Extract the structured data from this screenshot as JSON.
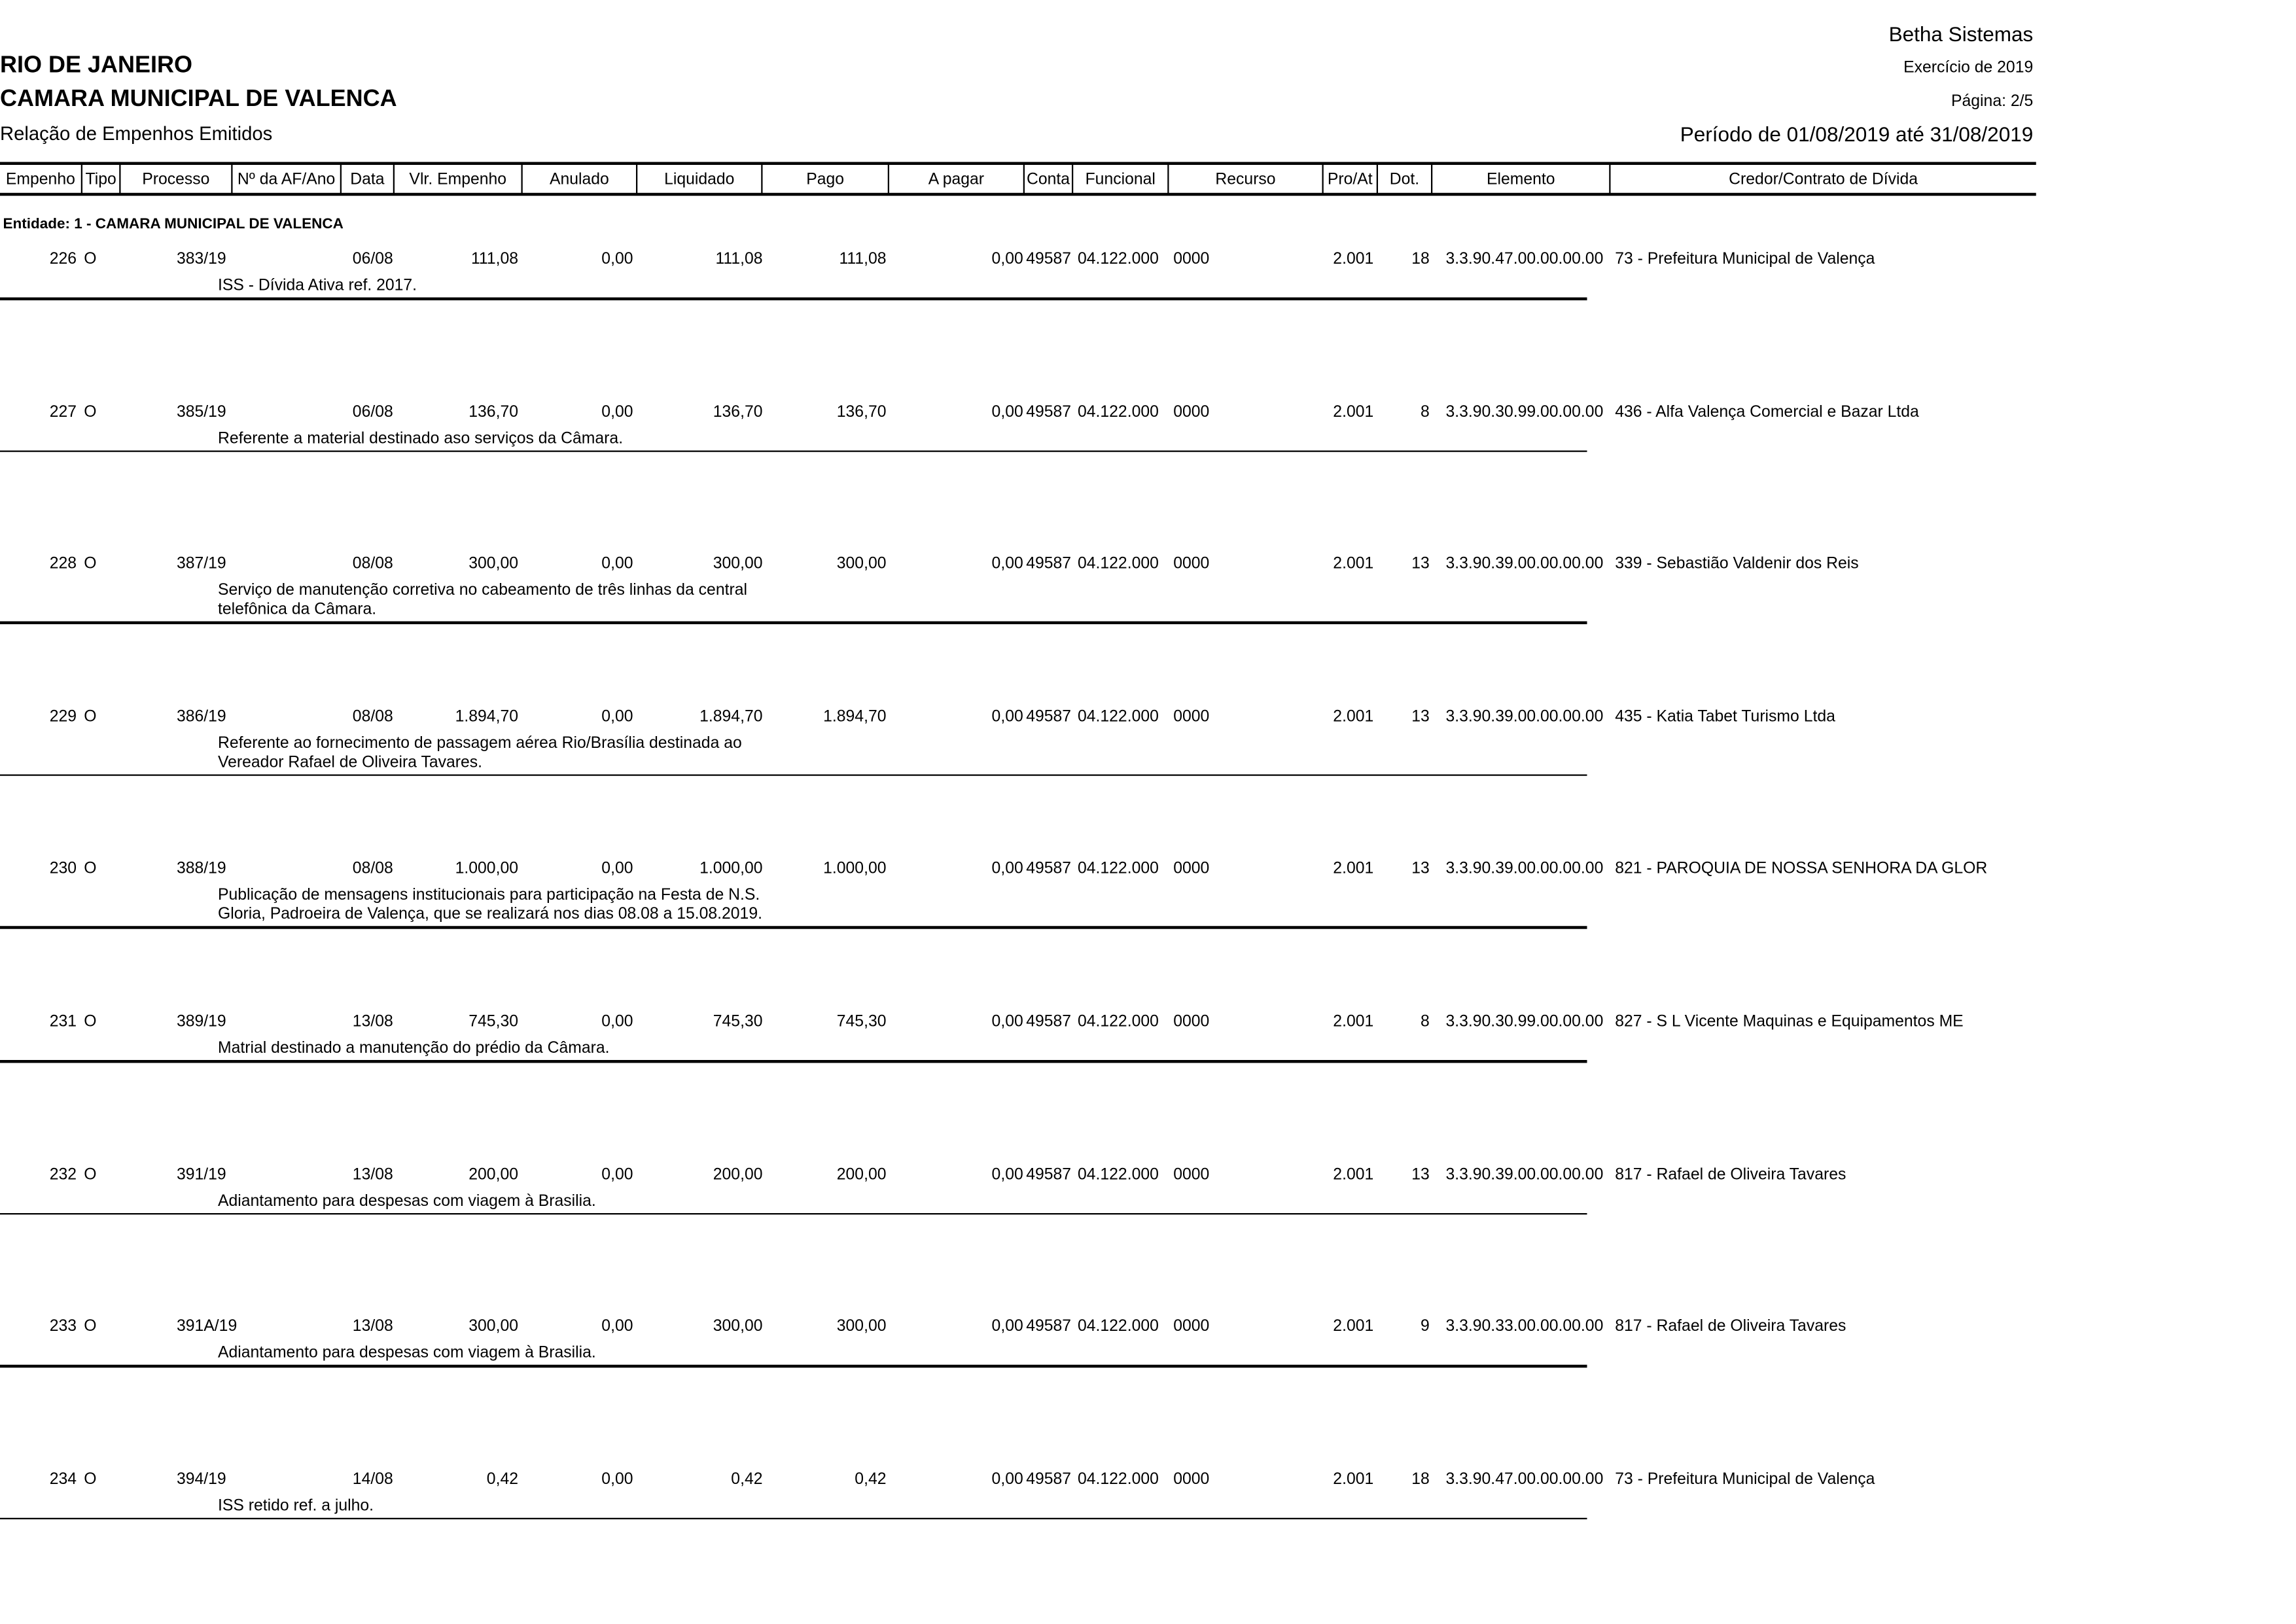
{
  "header": {
    "vendor": "Betha Sistemas",
    "state": "RIO DE JANEIRO",
    "entity_name": "CAMARA MUNICIPAL DE VALENCA",
    "report_title": "Relação de Empenhos Emitidos",
    "exercise": "Exercício de 2019",
    "page": "Página: 2/5",
    "period": "Período de 01/08/2019 até 31/08/2019"
  },
  "columns": [
    "Empenho",
    "Tipo",
    "Processo",
    "Nº da AF/Ano",
    "Data",
    "Vlr. Empenho",
    "Anulado",
    "Liquidado",
    "Pago",
    "A pagar",
    "Conta",
    "Funcional",
    "Recurso",
    "Pro/At",
    "Dot.",
    "Elemento",
    "Credor/Contrato de Dívida"
  ],
  "entity_label": "Entidade: 1 - CAMARA MUNICIPAL DE VALENCA",
  "rows": [
    {
      "empenho": "226",
      "tipo": "O",
      "processo": "383/19",
      "af": "",
      "data": "06/08",
      "vlr": "111,08",
      "anulado": "0,00",
      "liquidado": "111,08",
      "pago": "111,08",
      "apagar": "0,00",
      "conta": "49587",
      "funcional": "04.122.000",
      "recurso": "0000",
      "proat": "2.001",
      "dot": "18",
      "elemento": "3.3.90.47.00.00.00.00",
      "credor": "73 - Prefeitura Municipal de Valença",
      "desc": "ISS - Dívida Ativa ref. 2017."
    },
    {
      "empenho": "227",
      "tipo": "O",
      "processo": "385/19",
      "af": "",
      "data": "06/08",
      "vlr": "136,70",
      "anulado": "0,00",
      "liquidado": "136,70",
      "pago": "136,70",
      "apagar": "0,00",
      "conta": "49587",
      "funcional": "04.122.000",
      "recurso": "0000",
      "proat": "2.001",
      "dot": "8",
      "elemento": "3.3.90.30.99.00.00.00",
      "credor": "436 - Alfa Valença Comercial e Bazar Ltda",
      "desc": "Referente a material destinado aso serviços da Câmara."
    },
    {
      "empenho": "228",
      "tipo": "O",
      "processo": "387/19",
      "af": "",
      "data": "08/08",
      "vlr": "300,00",
      "anulado": "0,00",
      "liquidado": "300,00",
      "pago": "300,00",
      "apagar": "0,00",
      "conta": "49587",
      "funcional": "04.122.000",
      "recurso": "0000",
      "proat": "2.001",
      "dot": "13",
      "elemento": "3.3.90.39.00.00.00.00",
      "credor": "339 - Sebastião Valdenir dos Reis",
      "desc": "Serviço de manutenção corretiva no cabeamento de três linhas da central\ntelefônica da  Câmara."
    },
    {
      "empenho": "229",
      "tipo": "O",
      "processo": "386/19",
      "af": "",
      "data": "08/08",
      "vlr": "1.894,70",
      "anulado": "0,00",
      "liquidado": "1.894,70",
      "pago": "1.894,70",
      "apagar": "0,00",
      "conta": "49587",
      "funcional": "04.122.000",
      "recurso": "0000",
      "proat": "2.001",
      "dot": "13",
      "elemento": "3.3.90.39.00.00.00.00",
      "credor": "435 - Katia Tabet Turismo Ltda",
      "desc": "Referente ao fornecimento de passagem aérea Rio/Brasília destinada ao\nVereador Rafael de Oliveira Tavares."
    },
    {
      "empenho": "230",
      "tipo": "O",
      "processo": "388/19",
      "af": "",
      "data": "08/08",
      "vlr": "1.000,00",
      "anulado": "0,00",
      "liquidado": "1.000,00",
      "pago": "1.000,00",
      "apagar": "0,00",
      "conta": "49587",
      "funcional": "04.122.000",
      "recurso": "0000",
      "proat": "2.001",
      "dot": "13",
      "elemento": "3.3.90.39.00.00.00.00",
      "credor": "821 - PAROQUIA DE NOSSA SENHORA DA GLOR",
      "desc": "Publicação de mensagens institucionais para participação na Festa de N.S.\nGloria, Padroeira de Valença,  que se realizará nos dias 08.08 a 15.08.2019."
    },
    {
      "empenho": "231",
      "tipo": "O",
      "processo": "389/19",
      "af": "",
      "data": "13/08",
      "vlr": "745,30",
      "anulado": "0,00",
      "liquidado": "745,30",
      "pago": "745,30",
      "apagar": "0,00",
      "conta": "49587",
      "funcional": "04.122.000",
      "recurso": "0000",
      "proat": "2.001",
      "dot": "8",
      "elemento": "3.3.90.30.99.00.00.00",
      "credor": "827 - S L Vicente Maquinas e Equipamentos ME",
      "desc": "Matrial destinado a manutenção do prédio da Câmara."
    },
    {
      "empenho": "232",
      "tipo": "O",
      "processo": "391/19",
      "af": "",
      "data": "13/08",
      "vlr": "200,00",
      "anulado": "0,00",
      "liquidado": "200,00",
      "pago": "200,00",
      "apagar": "0,00",
      "conta": "49587",
      "funcional": "04.122.000",
      "recurso": "0000",
      "proat": "2.001",
      "dot": "13",
      "elemento": "3.3.90.39.00.00.00.00",
      "credor": "817 - Rafael de Oliveira Tavares",
      "desc": "Adiantamento para despesas com viagem à Brasilia."
    },
    {
      "empenho": "233",
      "tipo": "O",
      "processo": "391A/19",
      "af": "",
      "data": "13/08",
      "vlr": "300,00",
      "anulado": "0,00",
      "liquidado": "300,00",
      "pago": "300,00",
      "apagar": "0,00",
      "conta": "49587",
      "funcional": "04.122.000",
      "recurso": "0000",
      "proat": "2.001",
      "dot": "9",
      "elemento": "3.3.90.33.00.00.00.00",
      "credor": "817 - Rafael de Oliveira Tavares",
      "desc": "Adiantamento para despesas com viagem à Brasilia."
    },
    {
      "empenho": "234",
      "tipo": "O",
      "processo": "394/19",
      "af": "",
      "data": "14/08",
      "vlr": "0,42",
      "anulado": "0,00",
      "liquidado": "0,42",
      "pago": "0,42",
      "apagar": "0,00",
      "conta": "49587",
      "funcional": "04.122.000",
      "recurso": "0000",
      "proat": "2.001",
      "dot": "18",
      "elemento": "3.3.90.47.00.00.00.00",
      "credor": "73 - Prefeitura Municipal de Valença",
      "desc": "ISS retido ref. a julho."
    }
  ]
}
